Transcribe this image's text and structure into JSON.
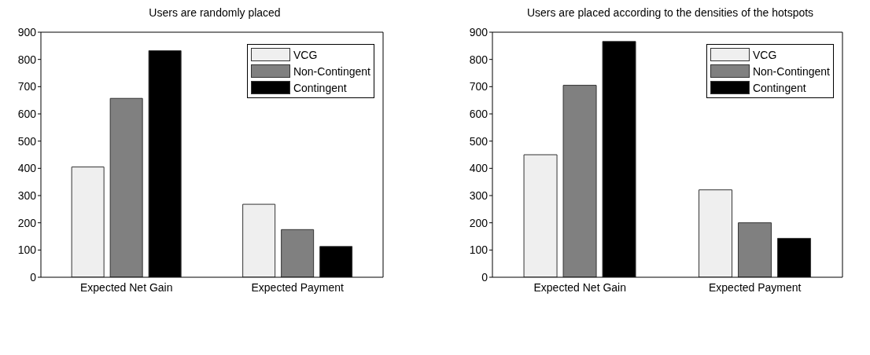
{
  "chart_data": [
    {
      "type": "bar",
      "title": "Users are randomly placed",
      "categories": [
        "Expected Net Gain",
        "Expected Payment"
      ],
      "series": [
        {
          "name": "VCG",
          "color": "#efefef",
          "values": [
            405,
            268
          ]
        },
        {
          "name": "Non-Contingent",
          "color": "#808080",
          "values": [
            657,
            175
          ]
        },
        {
          "name": "Contingent",
          "color": "#000000",
          "values": [
            832,
            113
          ]
        }
      ],
      "ylim": [
        0,
        900
      ],
      "yticks": [
        0,
        100,
        200,
        300,
        400,
        500,
        600,
        700,
        800,
        900
      ],
      "grid": false,
      "legend": "top right"
    },
    {
      "type": "bar",
      "title": "Users are placed according to the densities of the hotspots",
      "categories": [
        "Expected Net Gain",
        "Expected Payment"
      ],
      "series": [
        {
          "name": "VCG",
          "color": "#efefef",
          "values": [
            450,
            321
          ]
        },
        {
          "name": "Non-Contingent",
          "color": "#808080",
          "values": [
            705,
            200
          ]
        },
        {
          "name": "Contingent",
          "color": "#000000",
          "values": [
            866,
            143
          ]
        }
      ],
      "ylim": [
        0,
        900
      ],
      "yticks": [
        0,
        100,
        200,
        300,
        400,
        500,
        600,
        700,
        800,
        900
      ],
      "grid": false,
      "legend": "top right"
    }
  ]
}
